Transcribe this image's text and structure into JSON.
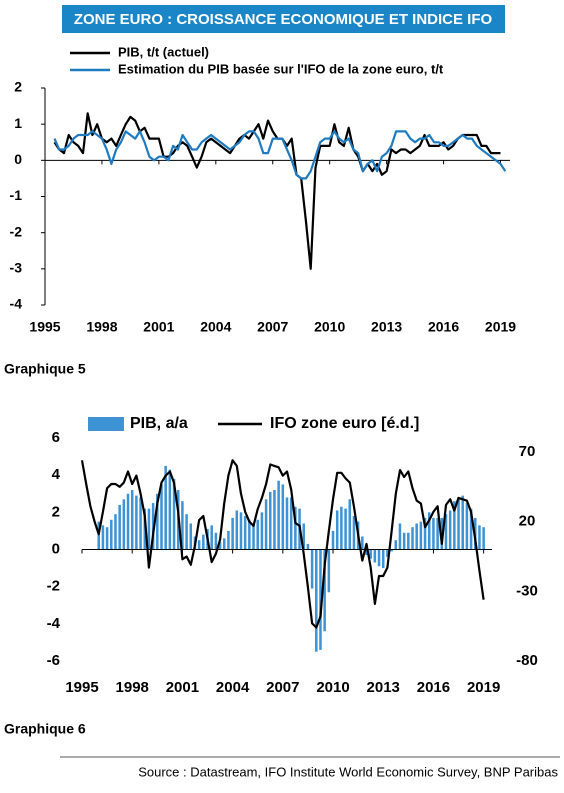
{
  "header": {
    "title": "ZONE EURO : CROISSANCE ECONOMIQUE ET INDICE IFO"
  },
  "chart_data": [
    {
      "type": "line",
      "caption": "Graphique 5",
      "x": [
        1995.5,
        1995.75,
        1996,
        1996.25,
        1996.5,
        1996.75,
        1997,
        1997.25,
        1997.5,
        1997.75,
        1998,
        1998.25,
        1998.5,
        1998.75,
        1999,
        1999.25,
        1999.5,
        1999.75,
        2000,
        2000.25,
        2000.5,
        2000.75,
        2001,
        2001.25,
        2001.5,
        2001.75,
        2002,
        2002.25,
        2002.5,
        2002.75,
        2003,
        2003.25,
        2003.5,
        2003.75,
        2004,
        2004.25,
        2004.5,
        2004.75,
        2005,
        2005.25,
        2005.5,
        2005.75,
        2006,
        2006.25,
        2006.5,
        2006.75,
        2007,
        2007.25,
        2007.5,
        2007.75,
        2008,
        2008.25,
        2008.5,
        2008.75,
        2009,
        2009.25,
        2009.5,
        2009.75,
        2010,
        2010.25,
        2010.5,
        2010.75,
        2011,
        2011.25,
        2011.5,
        2011.75,
        2012,
        2012.25,
        2012.5,
        2012.75,
        2013,
        2013.25,
        2013.5,
        2013.75,
        2014,
        2014.25,
        2014.5,
        2014.75,
        2015,
        2015.25,
        2015.5,
        2015.75,
        2016,
        2016.25,
        2016.5,
        2016.75,
        2017,
        2017.25,
        2017.5,
        2017.75,
        2018,
        2018.25,
        2018.5,
        2018.75,
        2019,
        2019.25
      ],
      "series": [
        {
          "name": "PIB, t/t (actuel)",
          "color": "#000000",
          "values": [
            0.5,
            0.3,
            0.2,
            0.7,
            0.5,
            0.4,
            0.2,
            1.3,
            0.7,
            1.0,
            0.6,
            0.5,
            0.6,
            0.4,
            0.7,
            1.0,
            1.2,
            1.1,
            0.8,
            0.9,
            0.6,
            0.6,
            0.6,
            0.1,
            0.1,
            0.2,
            0.4,
            0.5,
            0.4,
            0.1,
            -0.2,
            0.1,
            0.5,
            0.6,
            0.5,
            0.4,
            0.3,
            0.2,
            0.4,
            0.6,
            0.7,
            0.6,
            0.8,
            1.0,
            0.6,
            1.1,
            0.8,
            0.6,
            0.6,
            0.4,
            0.6,
            -0.4,
            -0.5,
            -1.7,
            -3.0,
            -0.2,
            0.4,
            0.4,
            0.4,
            1.0,
            0.5,
            0.4,
            0.9,
            0.3,
            0.1,
            -0.3,
            -0.1,
            -0.3,
            -0.1,
            -0.4,
            -0.3,
            0.3,
            0.2,
            0.3,
            0.3,
            0.2,
            0.3,
            0.4,
            0.7,
            0.4,
            0.4,
            0.4,
            0.5,
            0.3,
            0.4,
            0.6,
            0.7,
            0.7,
            0.7,
            0.7,
            0.4,
            0.4,
            0.2,
            0.2,
            0.2,
            null
          ]
        },
        {
          "name": "Estimation du PIB basée sur l'IFO de la zone euro, t/t",
          "color": "#1f7bc1",
          "values": [
            0.6,
            0.3,
            0.3,
            0.4,
            0.6,
            0.7,
            0.7,
            0.7,
            0.8,
            0.7,
            0.6,
            0.3,
            -0.1,
            0.3,
            0.5,
            0.8,
            0.7,
            0.6,
            0.8,
            0.5,
            0.1,
            0.0,
            0.1,
            0.1,
            0.0,
            0.4,
            0.3,
            0.7,
            0.5,
            0.3,
            0.3,
            0.5,
            0.6,
            0.7,
            0.6,
            0.5,
            0.4,
            0.3,
            0.4,
            0.5,
            0.7,
            0.8,
            0.8,
            0.6,
            0.2,
            0.2,
            0.6,
            0.6,
            0.6,
            0.3,
            0.0,
            -0.4,
            -0.5,
            -0.5,
            -0.3,
            0.1,
            0.5,
            0.6,
            0.6,
            0.8,
            0.6,
            0.5,
            0.6,
            0.3,
            0.2,
            -0.3,
            -0.1,
            0.0,
            -0.3,
            0.1,
            0.2,
            0.4,
            0.8,
            0.8,
            0.8,
            0.6,
            0.5,
            0.6,
            0.6,
            0.7,
            0.5,
            0.5,
            0.4,
            0.4,
            0.5,
            0.6,
            0.7,
            0.6,
            0.6,
            0.4,
            0.3,
            0.2,
            0.1,
            0.0,
            -0.1,
            -0.3
          ]
        }
      ],
      "xlim": [
        1995,
        2019.5
      ],
      "xticks": [
        1995,
        1998,
        2001,
        2004,
        2007,
        2010,
        2013,
        2016,
        2019
      ],
      "ylim": [
        -4,
        2
      ],
      "yticks": [
        -4,
        -3,
        -2,
        -1,
        0,
        1,
        2
      ],
      "negative_tick_color": "#e8112d"
    },
    {
      "type": "combo",
      "caption": "Graphique 6",
      "x": [
        1995,
        1995.25,
        1995.5,
        1995.75,
        1996,
        1996.25,
        1996.5,
        1996.75,
        1997,
        1997.25,
        1997.5,
        1997.75,
        1998,
        1998.25,
        1998.5,
        1998.75,
        1999,
        1999.25,
        1999.5,
        1999.75,
        2000,
        2000.25,
        2000.5,
        2000.75,
        2001,
        2001.25,
        2001.5,
        2001.75,
        2002,
        2002.25,
        2002.5,
        2002.75,
        2003,
        2003.25,
        2003.5,
        2003.75,
        2004,
        2004.25,
        2004.5,
        2004.75,
        2005,
        2005.25,
        2005.5,
        2005.75,
        2006,
        2006.25,
        2006.5,
        2006.75,
        2007,
        2007.25,
        2007.5,
        2007.75,
        2008,
        2008.25,
        2008.5,
        2008.75,
        2009,
        2009.25,
        2009.5,
        2009.75,
        2010,
        2010.25,
        2010.5,
        2010.75,
        2011,
        2011.25,
        2011.5,
        2011.75,
        2012,
        2012.25,
        2012.5,
        2012.75,
        2013,
        2013.25,
        2013.5,
        2013.75,
        2014,
        2014.25,
        2014.5,
        2014.75,
        2015,
        2015.25,
        2015.5,
        2015.75,
        2016,
        2016.25,
        2016.5,
        2016.75,
        2017,
        2017.25,
        2017.5,
        2017.75,
        2018,
        2018.25,
        2018.5,
        2018.75,
        2019
      ],
      "series": [
        {
          "name": "PIB, a/a",
          "type": "bar",
          "color": "#3d93d4",
          "values": [
            null,
            null,
            null,
            null,
            1.5,
            1.3,
            1.2,
            1.6,
            1.9,
            2.4,
            2.7,
            3.0,
            3.2,
            2.9,
            2.8,
            2.2,
            2.2,
            2.5,
            3.0,
            3.5,
            4.5,
            4.3,
            3.8,
            3.2,
            2.6,
            1.9,
            1.4,
            0.7,
            0.5,
            0.8,
            1.1,
            1.3,
            0.9,
            0.4,
            0.6,
            1.0,
            1.7,
            2.1,
            2.0,
            1.8,
            1.6,
            1.4,
            1.6,
            2.0,
            2.7,
            3.1,
            3.2,
            3.7,
            3.5,
            2.8,
            2.8,
            2.3,
            2.2,
            1.4,
            0.3,
            -2.1,
            -5.5,
            -5.4,
            -4.4,
            -2.3,
            1.0,
            2.1,
            2.3,
            2.2,
            2.7,
            1.8,
            1.5,
            0.7,
            -0.3,
            -0.5,
            -0.7,
            -0.9,
            -1.0,
            -0.4,
            -0.1,
            0.5,
            1.4,
            0.9,
            0.9,
            1.2,
            1.4,
            1.5,
            1.7,
            2.0,
            1.7,
            1.7,
            1.7,
            1.9,
            2.1,
            2.6,
            2.8,
            2.9,
            2.5,
            2.2,
            1.7,
            1.3,
            1.2
          ]
        },
        {
          "name": "IFO zone euro [é.d.]",
          "type": "line",
          "axis": "y2",
          "color": "#000000",
          "values": [
            64,
            47,
            31,
            20,
            11,
            27,
            44,
            47,
            47,
            45,
            48,
            56,
            47,
            53,
            40,
            24,
            -13,
            11,
            33,
            48,
            53,
            56,
            48,
            27,
            -7,
            -5,
            -11,
            3,
            21,
            24,
            8,
            -9,
            -3,
            7,
            33,
            53,
            64,
            60,
            40,
            27,
            20,
            17,
            29,
            37,
            47,
            61,
            60,
            59,
            53,
            56,
            43,
            19,
            17,
            -3,
            -27,
            -53,
            -56,
            -48,
            -11,
            13,
            36,
            55,
            55,
            51,
            48,
            31,
            11,
            -8,
            4,
            -13,
            -39,
            -19,
            -19,
            -13,
            13,
            40,
            57,
            52,
            56,
            44,
            35,
            33,
            16,
            21,
            27,
            31,
            4,
            32,
            36,
            28,
            37,
            36,
            35,
            27,
            7,
            -15,
            -36
          ]
        }
      ],
      "xlim": [
        1995,
        2019.5
      ],
      "xticks": [
        1995,
        1998,
        2001,
        2004,
        2007,
        2010,
        2013,
        2016,
        2019
      ],
      "ylim": [
        -6,
        6
      ],
      "yticks": [
        -6,
        -4,
        -2,
        0,
        2,
        4,
        6
      ],
      "y2lim": [
        -80,
        80
      ],
      "y2ticks": [
        -80,
        -30,
        20,
        70
      ],
      "negative_tick_color": "#e8112d"
    }
  ],
  "source": "Source : Datastream, IFO Institute World Economic Survey, BNP Paribas"
}
